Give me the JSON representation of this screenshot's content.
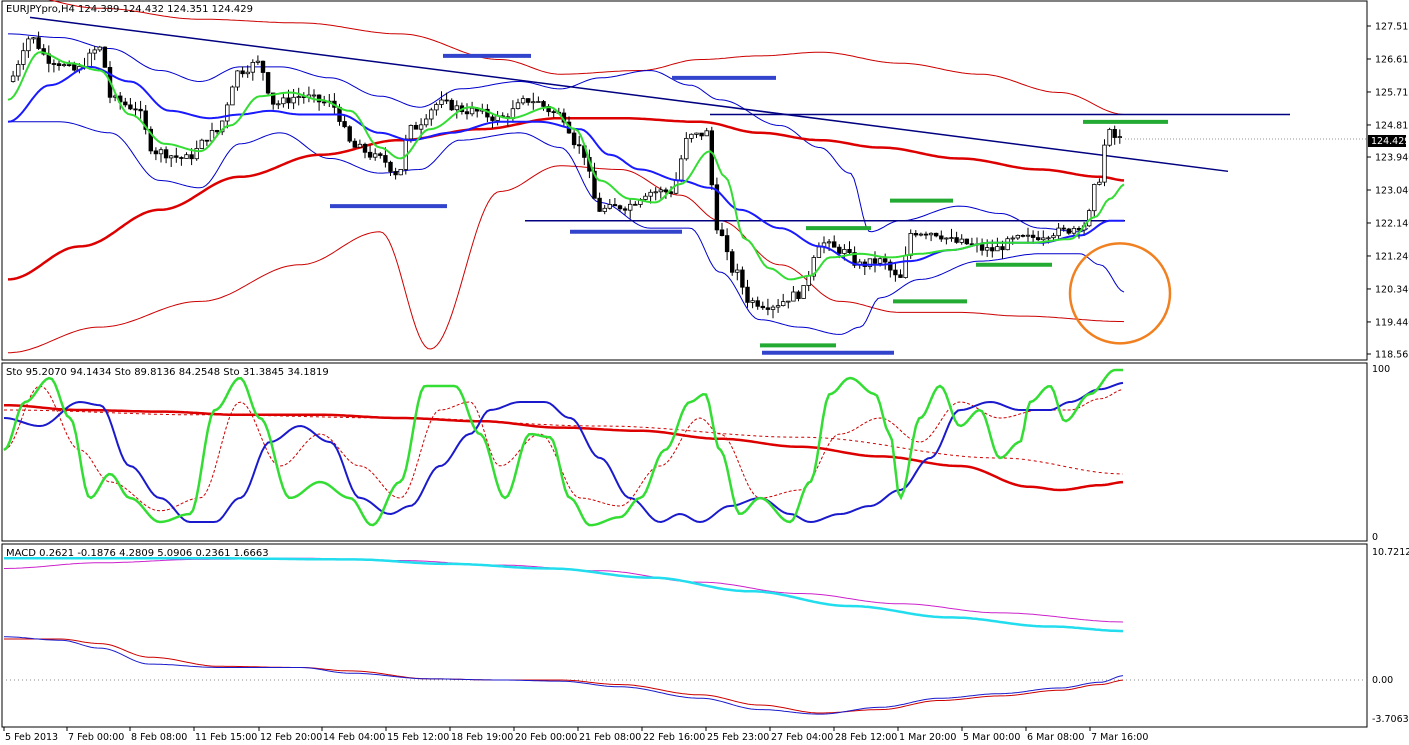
{
  "chart_data": [
    {
      "type": "candlestick",
      "pane": "price",
      "header": "EURJPYpro,H4  124.389 124.432 124.351 124.429",
      "current_price_label": "124.429",
      "y_ticks": [
        "127.515",
        "126.615",
        "125.715",
        "124.815",
        "123.940",
        "123.040",
        "122.140",
        "121.240",
        "120.340",
        "119.440",
        "118.565"
      ],
      "ylim": [
        118.565,
        127.515
      ],
      "x_ticks": [
        "5 Feb 2013",
        "7 Feb 00:00",
        "8 Feb 08:00",
        "11 Feb 15:00",
        "12 Feb 20:00",
        "14 Feb 04:00",
        "15 Feb 12:00",
        "18 Feb 19:00",
        "20 Feb 00:00",
        "21 Feb 08:00",
        "22 Feb 16:00",
        "25 Feb 23:00",
        "27 Feb 04:00",
        "28 Feb 12:00",
        "1 Mar 20:00",
        "5 Mar 00:00",
        "6 Mar 08:00",
        "7 Mar 16:00"
      ],
      "levels": {
        "resistance": 125.1,
        "support": 122.2,
        "trendline_start": 127.75,
        "trendline_end": 123.55
      },
      "colors": {
        "up_candle": "#ffffff",
        "down_candle": "#000000",
        "bb_outer": "#cc0000",
        "bb_inner": "#0000cc",
        "ma_green": "#33dd33",
        "ma_blue": "#1a1aff",
        "ma_red": "#dd0000",
        "marker_blue": "#3344cc",
        "marker_green": "#22aa33",
        "circle": "#f08020"
      }
    },
    {
      "type": "line",
      "pane": "stochastic",
      "header": "Sto 95.2070 94.1434  Sto 89.8136 84.2548  Sto 31.3845 34.1819",
      "y_ticks": [
        "100",
        "0"
      ],
      "ylim": [
        0,
        100
      ]
    },
    {
      "type": "line",
      "pane": "macd",
      "header": "MACD 0.2621 -0.1876 4.2809 5.0906 0.2361 1.6663",
      "y_ticks": [
        "10.7212",
        "0.00",
        "-3.7063"
      ],
      "ylim": [
        -3.7063,
        10.7212
      ]
    }
  ]
}
